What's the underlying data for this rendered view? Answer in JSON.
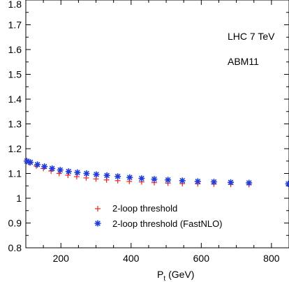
{
  "chart_data": {
    "type": "scatter",
    "xlim": [
      100,
      850
    ],
    "ylim": [
      0.8,
      1.8
    ],
    "x_ticks": [
      200,
      400,
      600,
      800
    ],
    "y_ticks": [
      0.8,
      0.9,
      1,
      1.1,
      1.2,
      1.3,
      1.4,
      1.5,
      1.6,
      1.7,
      1.8
    ],
    "x_tick_labels": [
      "200",
      "400",
      "600",
      "800"
    ],
    "y_tick_labels": [
      "0.8",
      "0.9",
      "1",
      "1.1",
      "1.2",
      "1.3",
      "1.4",
      "1.5",
      "1.6",
      "1.7",
      "1.8"
    ],
    "xlabel_main": "P",
    "xlabel_sub": "t",
    "xlabel_unit": "(GeV)",
    "annotations": [
      "LHC 7 TeV",
      "ABM11"
    ],
    "legend_position": "bottom-center",
    "series": [
      {
        "name": "2-loop threshold",
        "marker": "plus",
        "color": "#e8241f",
        "x": [
          110,
          130,
          150,
          172,
          195,
          220,
          245,
          272,
          300,
          330,
          362,
          395,
          430,
          466,
          505,
          546,
          590,
          636,
          684,
          736
        ],
        "y": [
          1.143,
          1.13,
          1.12,
          1.11,
          1.1,
          1.093,
          1.087,
          1.082,
          1.078,
          1.074,
          1.071,
          1.068,
          1.066,
          1.063,
          1.061,
          1.059,
          1.058,
          1.057,
          1.056,
          1.055
        ]
      },
      {
        "name": "2-loop threshold (FastNLO)",
        "marker": "asterisk",
        "color": "#1f3cdb",
        "x": [
          103,
          113,
          133,
          153,
          175,
          198,
          222,
          247,
          273,
          301,
          331,
          362,
          396,
          430,
          466,
          505,
          546,
          590,
          636,
          684,
          736,
          848
        ],
        "y": [
          1.15,
          1.145,
          1.136,
          1.128,
          1.12,
          1.114,
          1.108,
          1.104,
          1.1,
          1.096,
          1.092,
          1.088,
          1.084,
          1.08,
          1.077,
          1.074,
          1.071,
          1.068,
          1.066,
          1.064,
          1.062,
          1.058
        ]
      }
    ]
  }
}
